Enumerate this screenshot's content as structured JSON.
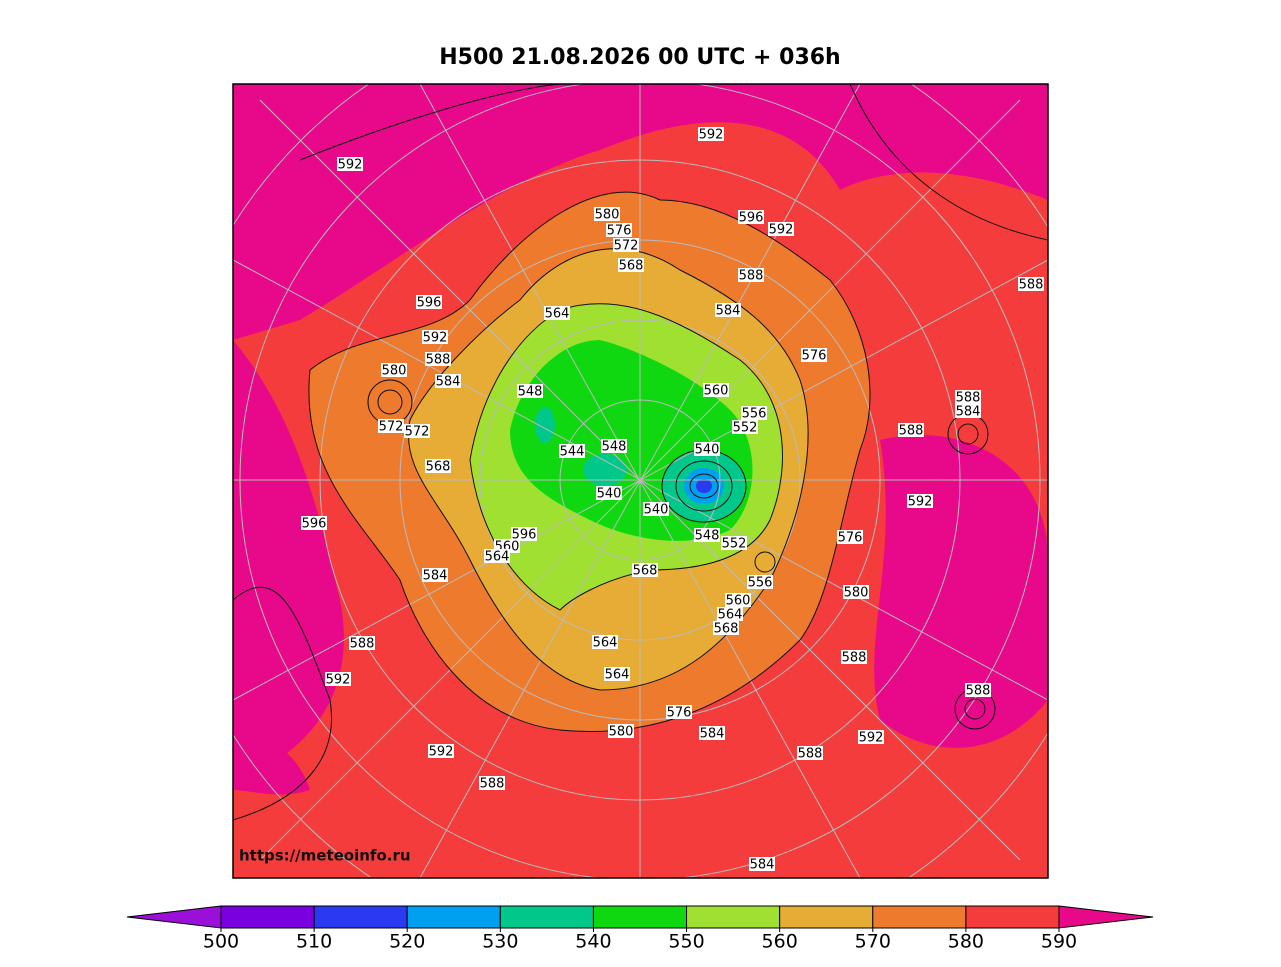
{
  "title": "H500  21.08.2026 00 UTC + 036h",
  "watermark": "https://meteoinfo.ru",
  "contour_labels": [
    592,
    592,
    596,
    592,
    580,
    576,
    572,
    568,
    588,
    584,
    588,
    596,
    564,
    592,
    588,
    576,
    580,
    584,
    548,
    560,
    556,
    552,
    588,
    584,
    588,
    572,
    572,
    544,
    548,
    540,
    568,
    540,
    592,
    596,
    540,
    596,
    560,
    564,
    548,
    552,
    576,
    584,
    568,
    556,
    580,
    560,
    564,
    568,
    564,
    588,
    588,
    564,
    592,
    588,
    576,
    580,
    584,
    592,
    588,
    592,
    588,
    584
  ],
  "colorbar": {
    "ticks": [
      500,
      510,
      520,
      530,
      540,
      550,
      560,
      570,
      580,
      590
    ],
    "colors": [
      "#9a10d8",
      "#7a00e0",
      "#2a3af0",
      "#00a0f0",
      "#00c88a",
      "#10d810",
      "#a0e030",
      "#e6ac35",
      "#ee7a2e",
      "#f53c3c",
      "#e8088a"
    ]
  }
}
